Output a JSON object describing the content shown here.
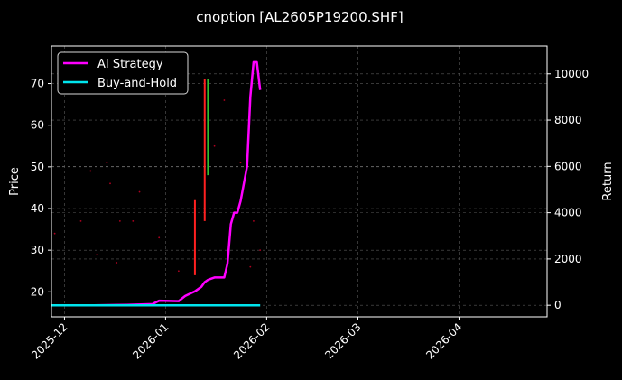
{
  "chart_data": {
    "type": "line",
    "title": "cnoption [AL2605P19200.SHF]",
    "ylabel_left": "Price",
    "ylabel_right": "Return",
    "x_range": [
      "2025-11-27",
      "2026-04-28"
    ],
    "x_ticks": [
      "2025-12",
      "2026-01",
      "2026-02",
      "2026-03",
      "2026-04"
    ],
    "y_left_range": [
      14.0,
      79.0
    ],
    "y_left_ticks": [
      "20",
      "30",
      "40",
      "50",
      "60",
      "70"
    ],
    "y_right_range": [
      -500,
      11200
    ],
    "y_right_ticks": [
      "0",
      "2000",
      "4000",
      "6000",
      "8000",
      "10000"
    ],
    "grid": true,
    "legend_position": "top-left",
    "legend": [
      {
        "label": "AI Strategy",
        "color": "#ff00ff"
      },
      {
        "label": "Buy-and-Hold",
        "color": "#00e5ee"
      }
    ],
    "series": [
      {
        "name": "AI Strategy",
        "axis": "right",
        "color": "#ff00ff",
        "points": [
          [
            "2025-11-27",
            0
          ],
          [
            "2025-12-10",
            0
          ],
          [
            "2025-12-20",
            20
          ],
          [
            "2025-12-28",
            50
          ],
          [
            "2025-12-30",
            200
          ],
          [
            "2026-01-05",
            180
          ],
          [
            "2026-01-07",
            400
          ],
          [
            "2026-01-10",
            600
          ],
          [
            "2026-01-12",
            800
          ],
          [
            "2026-01-13",
            1000
          ],
          [
            "2026-01-14",
            1100
          ],
          [
            "2026-01-15",
            1150
          ],
          [
            "2026-01-16",
            1200
          ],
          [
            "2026-01-19",
            1200
          ],
          [
            "2026-01-20",
            1800
          ],
          [
            "2026-01-21",
            3500
          ],
          [
            "2026-01-22",
            4000
          ],
          [
            "2026-01-23",
            4000
          ],
          [
            "2026-01-24",
            4500
          ],
          [
            "2026-01-26",
            6000
          ],
          [
            "2026-01-27",
            9000
          ],
          [
            "2026-01-28",
            10500
          ],
          [
            "2026-01-29",
            10500
          ],
          [
            "2026-01-30",
            9300
          ]
        ]
      },
      {
        "name": "Buy-and-Hold",
        "axis": "right",
        "color": "#00e5ee",
        "points": [
          [
            "2025-11-27",
            0
          ],
          [
            "2026-01-30",
            0
          ]
        ]
      }
    ],
    "candles": [
      {
        "date": "2026-01-10",
        "low": 24.0,
        "high": 42.0,
        "color": "#ff2020"
      },
      {
        "date": "2026-01-13",
        "low": 37.0,
        "high": 71.0,
        "color": "#ff2020"
      },
      {
        "date": "2026-01-14",
        "low": 48.0,
        "high": 71.0,
        "color": "#30c030"
      }
    ],
    "scatter_marks": [
      {
        "date": "2025-11-28",
        "price": 34
      },
      {
        "date": "2025-12-06",
        "price": 37
      },
      {
        "date": "2025-12-09",
        "price": 49
      },
      {
        "date": "2025-12-11",
        "price": 29
      },
      {
        "date": "2025-12-14",
        "price": 51
      },
      {
        "date": "2025-12-15",
        "price": 46
      },
      {
        "date": "2025-12-17",
        "price": 27
      },
      {
        "date": "2025-12-18",
        "price": 37
      },
      {
        "date": "2025-12-22",
        "price": 37
      },
      {
        "date": "2025-12-24",
        "price": 44
      },
      {
        "date": "2025-12-30",
        "price": 33
      },
      {
        "date": "2026-01-05",
        "price": 25
      },
      {
        "date": "2026-01-16",
        "price": 55
      },
      {
        "date": "2026-01-19",
        "price": 66
      },
      {
        "date": "2026-01-24",
        "price": 51
      },
      {
        "date": "2026-01-27",
        "price": 26
      },
      {
        "date": "2026-01-28",
        "price": 37
      },
      {
        "date": "2026-01-30",
        "price": 30
      }
    ]
  }
}
